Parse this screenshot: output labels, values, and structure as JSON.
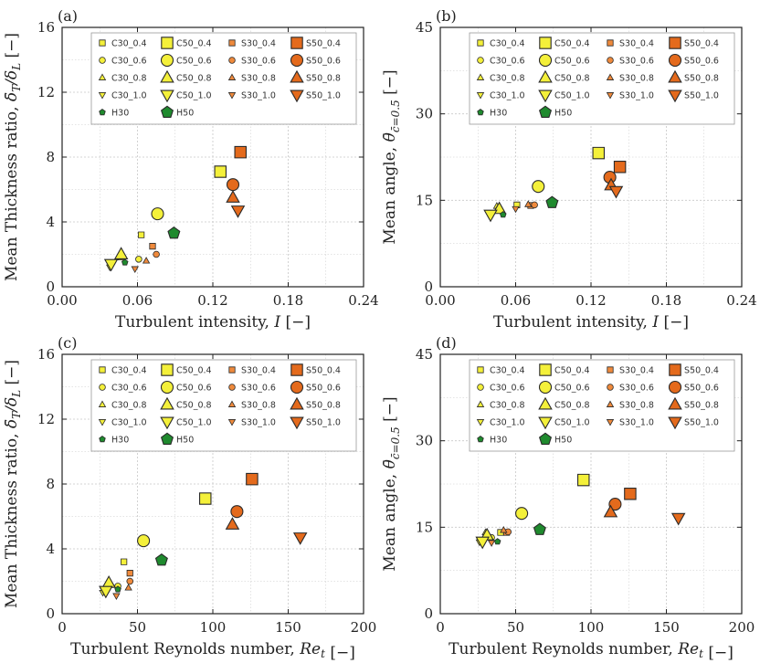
{
  "palette": {
    "yellow": "#f4f03a",
    "light_orange": "#ef8a3c",
    "dark_orange": "#e46a1c",
    "green": "#1f8a2e",
    "edge": "#2a2a2a",
    "grid": "#c8c8c8"
  },
  "legend": {
    "entries": [
      {
        "label": "C30_0.4",
        "shape": "square",
        "size": "small",
        "color": "yellow"
      },
      {
        "label": "C50_0.4",
        "shape": "square",
        "size": "large",
        "color": "yellow"
      },
      {
        "label": "S30_0.4",
        "shape": "square",
        "size": "small",
        "color": "light_orange"
      },
      {
        "label": "S50_0.4",
        "shape": "square",
        "size": "large",
        "color": "dark_orange"
      },
      {
        "label": "C30_0.6",
        "shape": "circle",
        "size": "small",
        "color": "yellow"
      },
      {
        "label": "C50_0.6",
        "shape": "circle",
        "size": "large",
        "color": "yellow"
      },
      {
        "label": "S30_0.6",
        "shape": "circle",
        "size": "small",
        "color": "light_orange"
      },
      {
        "label": "S50_0.6",
        "shape": "circle",
        "size": "large",
        "color": "dark_orange"
      },
      {
        "label": "C30_0.8",
        "shape": "triangle-up",
        "size": "small",
        "color": "yellow"
      },
      {
        "label": "C50_0.8",
        "shape": "triangle-up",
        "size": "large",
        "color": "yellow"
      },
      {
        "label": "S30_0.8",
        "shape": "triangle-up",
        "size": "small",
        "color": "light_orange"
      },
      {
        "label": "S50_0.8",
        "shape": "triangle-up",
        "size": "large",
        "color": "dark_orange"
      },
      {
        "label": "C30_1.0",
        "shape": "triangle-down",
        "size": "small",
        "color": "yellow"
      },
      {
        "label": "C50_1.0",
        "shape": "triangle-down",
        "size": "large",
        "color": "yellow"
      },
      {
        "label": "S30_1.0",
        "shape": "triangle-down",
        "size": "small",
        "color": "light_orange"
      },
      {
        "label": "S50_1.0",
        "shape": "triangle-down",
        "size": "large",
        "color": "dark_orange"
      },
      {
        "label": "H30",
        "shape": "pentagon",
        "size": "small",
        "color": "green"
      },
      {
        "label": "H50",
        "shape": "pentagon",
        "size": "large",
        "color": "green"
      }
    ]
  },
  "series_keys": [
    "C30_0.4",
    "C30_0.6",
    "C30_0.8",
    "C30_1.0",
    "C50_0.4",
    "C50_0.6",
    "C50_0.8",
    "C50_1.0",
    "S30_0.4",
    "S30_0.6",
    "S30_0.8",
    "S30_1.0",
    "S50_0.4",
    "S50_0.6",
    "S50_0.8",
    "S50_1.0",
    "H30",
    "H50"
  ],
  "chart_data": [
    {
      "panel": "(a)",
      "type": "scatter",
      "xlabel": "Turbulent intensity, I [−]",
      "ylabel": "Mean Thickness ratio, δ̄T/δL [−]",
      "xlim": [
        0,
        0.24
      ],
      "ylim": [
        0,
        16
      ],
      "xticks": [
        "0.00",
        "0.06",
        "0.12",
        "0.18",
        "0.24"
      ],
      "yticks": [
        "0",
        "4",
        "8",
        "12",
        "16"
      ],
      "points": [
        [
          0.063,
          3.2
        ],
        [
          0.061,
          1.7
        ],
        [
          0.047,
          1.8
        ],
        [
          0.038,
          1.2
        ],
        [
          0.126,
          7.1
        ],
        [
          0.076,
          4.5
        ],
        [
          0.047,
          2.0
        ],
        [
          0.039,
          1.4
        ],
        [
          0.072,
          2.5
        ],
        [
          0.075,
          2.0
        ],
        [
          0.067,
          1.6
        ],
        [
          0.058,
          1.1
        ],
        [
          0.142,
          8.3
        ],
        [
          0.136,
          6.3
        ],
        [
          0.136,
          5.5
        ],
        [
          0.14,
          4.7
        ],
        [
          0.05,
          1.5
        ],
        [
          0.089,
          3.3
        ]
      ]
    },
    {
      "panel": "(b)",
      "type": "scatter",
      "xlabel": "Turbulent intensity, I [−]",
      "ylabel": "Mean angle, θ̄c̄=0.5 [−]",
      "xlim": [
        0,
        0.24
      ],
      "ylim": [
        0,
        45
      ],
      "xticks": [
        "0.00",
        "0.06",
        "0.12",
        "0.18",
        "0.24"
      ],
      "yticks": [
        "0",
        "15",
        "30",
        "45"
      ],
      "points": [
        [
          0.061,
          14.2
        ],
        [
          0.047,
          13.3
        ],
        [
          0.045,
          14.0
        ],
        [
          0.039,
          12.4
        ],
        [
          0.126,
          23.2
        ],
        [
          0.078,
          17.4
        ],
        [
          0.047,
          13.5
        ],
        [
          0.04,
          12.5
        ],
        [
          0.072,
          14.1
        ],
        [
          0.075,
          14.2
        ],
        [
          0.07,
          14.3
        ],
        [
          0.06,
          13.5
        ],
        [
          0.143,
          20.8
        ],
        [
          0.135,
          19.0
        ],
        [
          0.136,
          17.6
        ],
        [
          0.14,
          16.6
        ],
        [
          0.05,
          12.5
        ],
        [
          0.089,
          14.6
        ]
      ]
    },
    {
      "panel": "(c)",
      "type": "scatter",
      "xlabel": "Turbulent Reynolds number, Ret [−]",
      "ylabel": "Mean Thickness ratio, δ̄T/δL [−]",
      "xlim": [
        0,
        200
      ],
      "ylim": [
        0,
        16
      ],
      "xticks": [
        "0",
        "50",
        "100",
        "150",
        "200"
      ],
      "yticks": [
        "0",
        "4",
        "8",
        "12",
        "16"
      ],
      "points": [
        [
          41,
          3.2
        ],
        [
          37,
          1.7
        ],
        [
          30,
          1.8
        ],
        [
          27,
          1.3
        ],
        [
          95,
          7.1
        ],
        [
          54,
          4.5
        ],
        [
          31,
          1.9
        ],
        [
          29,
          1.4
        ],
        [
          45,
          2.5
        ],
        [
          45,
          2.0
        ],
        [
          44,
          1.6
        ],
        [
          36,
          1.1
        ],
        [
          126,
          8.3
        ],
        [
          116,
          6.3
        ],
        [
          113,
          5.5
        ],
        [
          158,
          4.7
        ],
        [
          37,
          1.5
        ],
        [
          66,
          3.3
        ]
      ]
    },
    {
      "panel": "(d)",
      "type": "scatter",
      "xlabel": "Turbulent Reynolds number, Ret [−]",
      "ylabel": "Mean angle, θ̄c̄=0.5 [−]",
      "xlim": [
        0,
        200
      ],
      "ylim": [
        0,
        45
      ],
      "xticks": [
        "0",
        "50",
        "100",
        "150",
        "200"
      ],
      "yticks": [
        "0",
        "15",
        "30",
        "45"
      ],
      "points": [
        [
          40,
          14.1
        ],
        [
          34,
          13.2
        ],
        [
          30,
          14.1
        ],
        [
          26,
          12.4
        ],
        [
          95,
          23.2
        ],
        [
          54,
          17.4
        ],
        [
          31,
          13.6
        ],
        [
          28,
          12.5
        ],
        [
          44,
          14.1
        ],
        [
          45,
          14.2
        ],
        [
          42,
          14.5
        ],
        [
          34,
          12.3
        ],
        [
          126,
          20.8
        ],
        [
          116,
          19.0
        ],
        [
          113,
          17.6
        ],
        [
          158,
          16.6
        ],
        [
          38,
          12.5
        ],
        [
          66,
          14.6
        ]
      ]
    }
  ]
}
